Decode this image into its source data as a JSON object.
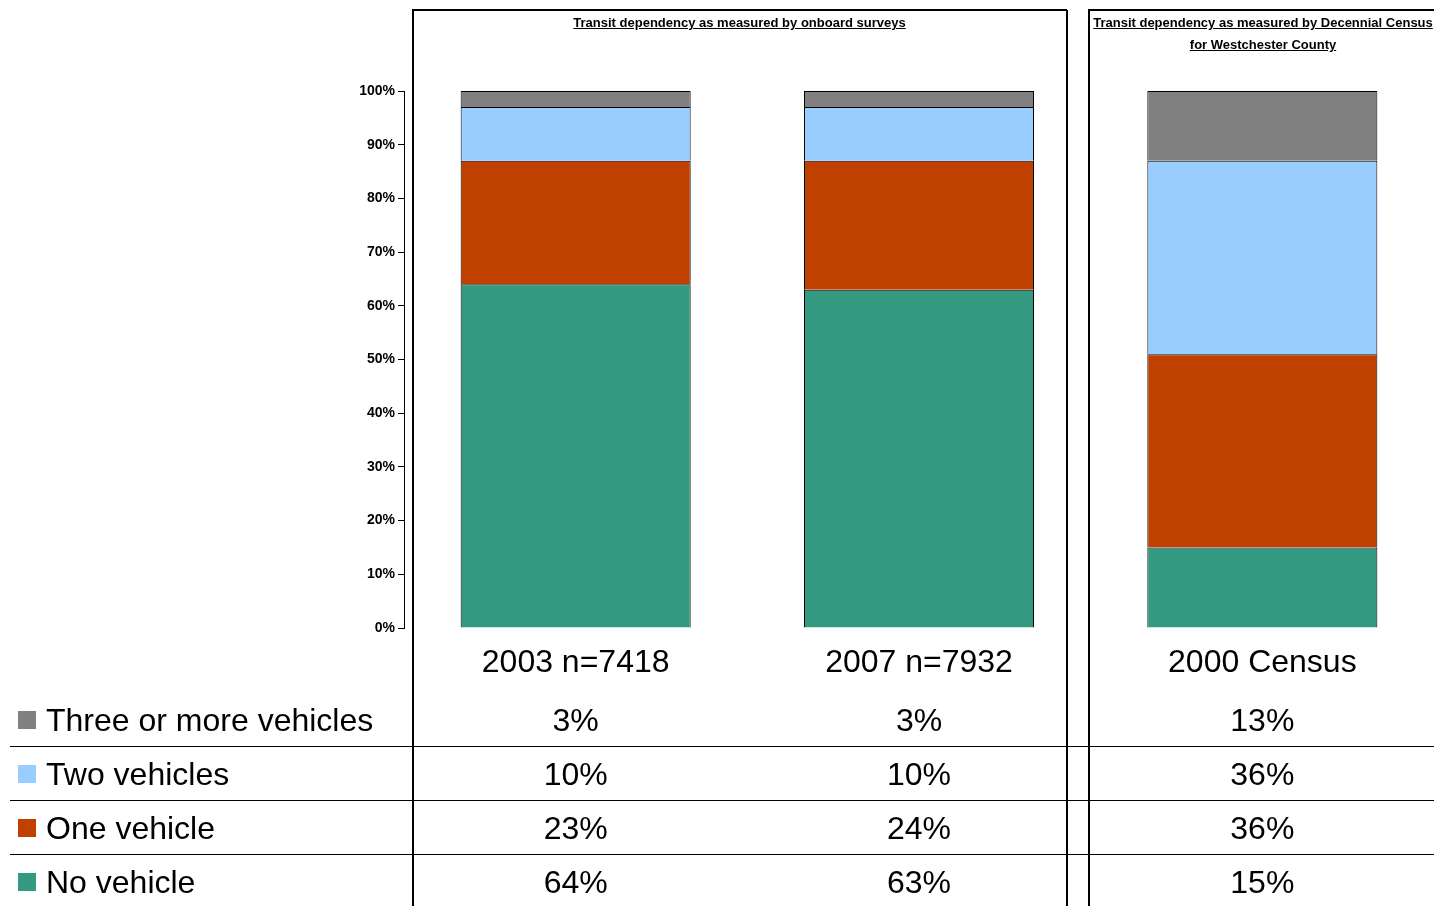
{
  "chart_data": {
    "type": "bar",
    "stacked": true,
    "title": "Transit dependency as measured by onboard surveys",
    "annotations": [
      "Transit dependency as measured by Decennial Census for Westchester County"
    ],
    "categories": [
      "2003 n=7418",
      "2007 n=7932",
      "2000 Census"
    ],
    "ylim": [
      0,
      100
    ],
    "yticks": [
      {
        "value": 0,
        "label": "0%"
      },
      {
        "value": 10,
        "label": "10%"
      },
      {
        "value": 20,
        "label": "20%"
      },
      {
        "value": 30,
        "label": "30%"
      },
      {
        "value": 40,
        "label": "40%"
      },
      {
        "value": 50,
        "label": "50%"
      },
      {
        "value": 60,
        "label": "60%"
      },
      {
        "value": 70,
        "label": "70%"
      },
      {
        "value": 80,
        "label": "80%"
      },
      {
        "value": 90,
        "label": "90%"
      },
      {
        "value": 100,
        "label": "100%"
      }
    ],
    "grid": false,
    "legend": "bottom",
    "series": [
      {
        "name": "No vehicle",
        "color": "#339980",
        "values": [
          64,
          63,
          15
        ],
        "value_labels": [
          "64%",
          "63%",
          "15%"
        ]
      },
      {
        "name": "One vehicle",
        "color": "#c04000",
        "values": [
          23,
          24,
          36
        ],
        "value_labels": [
          "23%",
          "24%",
          "36%"
        ]
      },
      {
        "name": "Two vehicles",
        "color": "#99ccff",
        "values": [
          10,
          10,
          36
        ],
        "value_labels": [
          "10%",
          "10%",
          "36%"
        ]
      },
      {
        "name": "Three or more vehicles",
        "color": "#808080",
        "values": [
          3,
          3,
          13
        ],
        "value_labels": [
          "3%",
          "3%",
          "13%"
        ]
      }
    ]
  }
}
